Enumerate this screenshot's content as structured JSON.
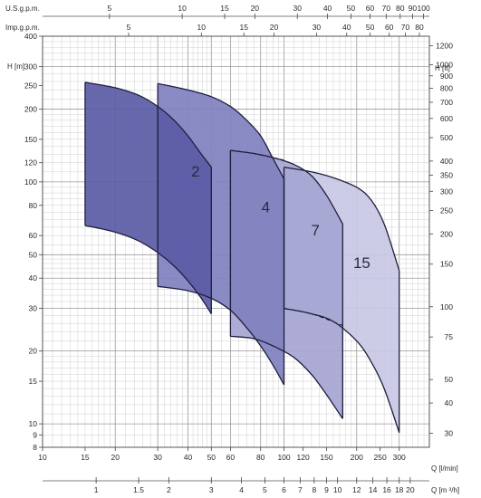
{
  "chart_data": {
    "type": "area",
    "x_scale": "log",
    "y_scale": "log",
    "grid": true,
    "x_axis": {
      "label": "Q [l/min]",
      "range": [
        10,
        400
      ],
      "ticks": [
        10,
        15,
        20,
        30,
        40,
        50,
        60,
        80,
        100,
        120,
        150,
        200,
        250,
        300
      ]
    },
    "x_axis_m3h": {
      "label": "Q [m ³/h]",
      "ticks": [
        1,
        1.5,
        2,
        3,
        4,
        5,
        6,
        7,
        8,
        9,
        10,
        12,
        14,
        16,
        18,
        20
      ]
    },
    "x_axis_usgpm": {
      "label": "U.S.g.p.m.",
      "ticks": [
        5,
        10,
        15,
        20,
        30,
        40,
        50,
        60,
        70,
        80,
        90,
        100
      ]
    },
    "x_axis_impgpm": {
      "label": "Imp.g.p.m.",
      "ticks": [
        5,
        10,
        15,
        20,
        30,
        40,
        50,
        60,
        70,
        80
      ]
    },
    "y_axis": {
      "label": "H [m]",
      "range": [
        8,
        400
      ],
      "ticks": [
        8,
        9,
        10,
        15,
        20,
        30,
        40,
        50,
        60,
        80,
        100,
        120,
        150,
        200,
        250,
        300,
        400
      ]
    },
    "y_axis_ft": {
      "label": "H [ft]",
      "ticks": [
        30,
        40,
        50,
        75,
        100,
        150,
        200,
        250,
        300,
        350,
        400,
        500,
        600,
        700,
        800,
        900,
        1000,
        1200
      ]
    },
    "series": [
      {
        "name": "2",
        "color": "#5b5ba6",
        "q_min": 15,
        "q_max": 50,
        "upper": [
          [
            15,
            258
          ],
          [
            20,
            245
          ],
          [
            25,
            228
          ],
          [
            30,
            205
          ],
          [
            35,
            180
          ],
          [
            40,
            155
          ],
          [
            45,
            132
          ],
          [
            50,
            115
          ]
        ],
        "lower": [
          [
            15,
            66
          ],
          [
            20,
            62
          ],
          [
            25,
            57
          ],
          [
            30,
            51
          ],
          [
            35,
            45
          ],
          [
            40,
            39
          ],
          [
            45,
            33.5
          ],
          [
            50,
            28.5
          ]
        ],
        "dashed": [
          [
            30,
            205
          ],
          [
            30,
            57
          ]
        ]
      },
      {
        "name": "4",
        "color": "#8080bf",
        "q_min": 30,
        "q_max": 100,
        "upper": [
          [
            30,
            255
          ],
          [
            40,
            240
          ],
          [
            50,
            225
          ],
          [
            60,
            205
          ],
          [
            70,
            180
          ],
          [
            80,
            155
          ],
          [
            90,
            125
          ],
          [
            100,
            103
          ]
        ],
        "lower": [
          [
            30,
            37
          ],
          [
            40,
            35.5
          ],
          [
            50,
            33
          ],
          [
            60,
            29.5
          ],
          [
            70,
            25
          ],
          [
            80,
            21
          ],
          [
            90,
            17.5
          ],
          [
            100,
            14.5
          ]
        ],
        "dashed": [
          [
            60,
            135
          ],
          [
            60,
            29.5
          ]
        ]
      },
      {
        "name": "7",
        "color": "#a5a5d2",
        "q_min": 60,
        "q_max": 175,
        "upper": [
          [
            60,
            135
          ],
          [
            75,
            131
          ],
          [
            90,
            126
          ],
          [
            110,
            118
          ],
          [
            130,
            106
          ],
          [
            150,
            88
          ],
          [
            175,
            67
          ]
        ],
        "lower": [
          [
            60,
            23
          ],
          [
            75,
            22.5
          ],
          [
            90,
            21
          ],
          [
            110,
            18.8
          ],
          [
            130,
            16
          ],
          [
            150,
            13.2
          ],
          [
            175,
            10.5
          ]
        ],
        "dashed": [
          [
            60,
            135
          ],
          [
            75,
            131
          ],
          [
            90,
            126
          ],
          [
            100,
            123
          ]
        ]
      },
      {
        "name": "15",
        "color": "#c8c8e5",
        "q_min": 100,
        "q_max": 300,
        "upper": [
          [
            100,
            115
          ],
          [
            130,
            110
          ],
          [
            160,
            104
          ],
          [
            200,
            95
          ],
          [
            230,
            84
          ],
          [
            260,
            67
          ],
          [
            300,
            43
          ]
        ],
        "lower": [
          [
            100,
            30
          ],
          [
            130,
            28.5
          ],
          [
            160,
            26.5
          ],
          [
            200,
            22
          ],
          [
            230,
            18
          ],
          [
            260,
            14
          ],
          [
            300,
            9.2
          ]
        ],
        "dashed": [
          [
            100,
            30
          ],
          [
            130,
            28.5
          ],
          [
            175,
            25.5
          ]
        ]
      }
    ]
  }
}
